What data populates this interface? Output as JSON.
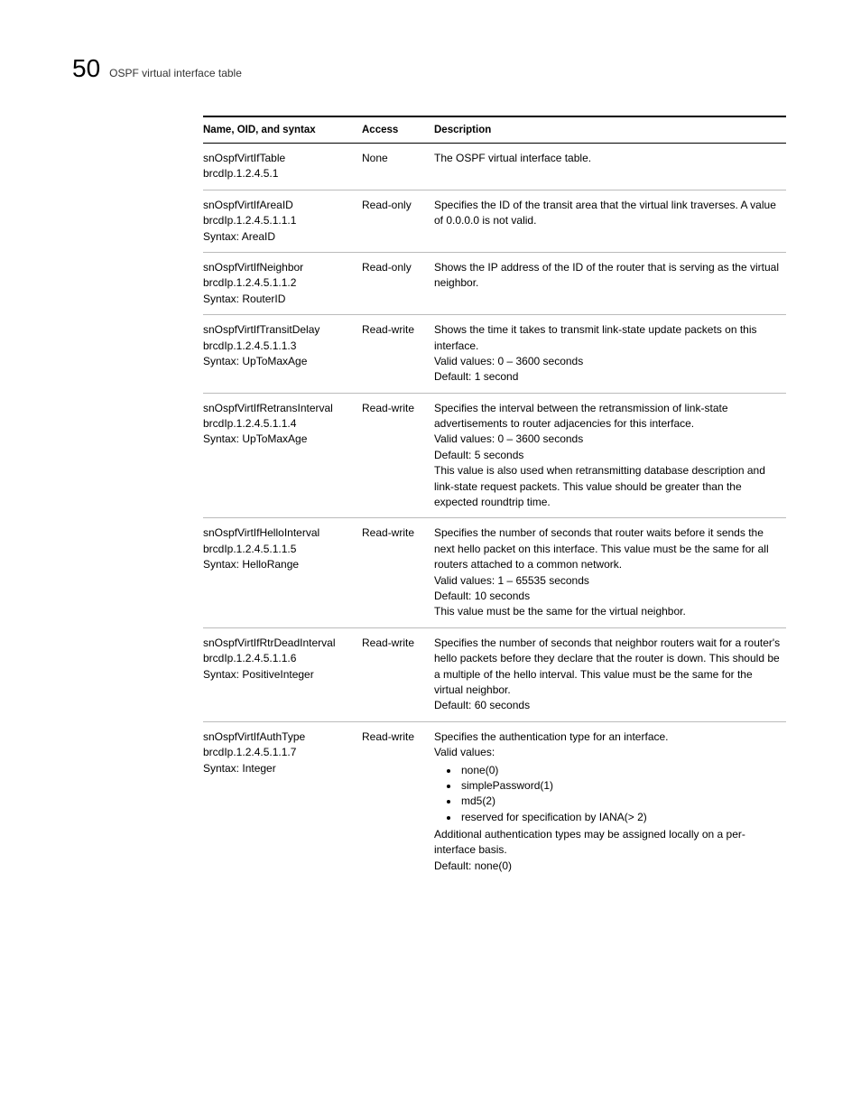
{
  "header": {
    "chapter_number": "50",
    "chapter_title": "OSPF virtual interface table"
  },
  "table": {
    "columns": {
      "name": "Name, OID, and syntax",
      "access": "Access",
      "description": "Description"
    },
    "rows": [
      {
        "name_lines": [
          "snOspfVirtIfTable",
          "brcdIp.1.2.4.5.1"
        ],
        "access": "None",
        "desc_pre": [
          "The OSPF virtual interface table."
        ],
        "bullets": [],
        "desc_post": []
      },
      {
        "name_lines": [
          "snOspfVirtIfAreaID",
          "brcdIp.1.2.4.5.1.1.1",
          "Syntax: AreaID"
        ],
        "access": "Read-only",
        "desc_pre": [
          "Specifies the ID of the transit area that the virtual link traverses. A value of 0.0.0.0 is not valid."
        ],
        "bullets": [],
        "desc_post": []
      },
      {
        "name_lines": [
          "snOspfVirtIfNeighbor",
          "brcdIp.1.2.4.5.1.1.2",
          "Syntax: RouterID"
        ],
        "access": "Read-only",
        "desc_pre": [
          "Shows the IP address of the ID of the router that is serving as the virtual neighbor."
        ],
        "bullets": [],
        "desc_post": []
      },
      {
        "name_lines": [
          "snOspfVirtIfTransitDelay",
          "brcdIp.1.2.4.5.1.1.3",
          "Syntax: UpToMaxAge"
        ],
        "access": "Read-write",
        "desc_pre": [
          "Shows the time it takes to transmit link-state update packets on this interface.",
          "Valid values: 0 – 3600 seconds",
          "Default: 1 second"
        ],
        "bullets": [],
        "desc_post": []
      },
      {
        "name_lines": [
          "snOspfVirtIfRetransInterval",
          "brcdIp.1.2.4.5.1.1.4",
          "Syntax: UpToMaxAge"
        ],
        "access": "Read-write",
        "desc_pre": [
          "Specifies the interval between the retransmission of link-state advertisements to router adjacencies for this interface.",
          "Valid values: 0 – 3600 seconds",
          "Default: 5 seconds",
          "This value is also used when retransmitting database description and link-state request packets. This value should be greater than the expected roundtrip time."
        ],
        "bullets": [],
        "desc_post": []
      },
      {
        "name_lines": [
          "snOspfVirtIfHelloInterval",
          "brcdIp.1.2.4.5.1.1.5",
          "Syntax: HelloRange"
        ],
        "access": "Read-write",
        "desc_pre": [
          "Specifies the number of seconds that router waits before it sends the next hello packet on this interface. This value must be the same for all routers attached to a common network.",
          "Valid values: 1 – 65535 seconds",
          "Default: 10 seconds",
          "This value must be the same for the virtual neighbor."
        ],
        "bullets": [],
        "desc_post": []
      },
      {
        "name_lines": [
          "snOspfVirtIfRtrDeadInterval",
          "brcdIp.1.2.4.5.1.1.6",
          "Syntax: PositiveInteger"
        ],
        "access": "Read-write",
        "desc_pre": [
          "Specifies the number of seconds that neighbor routers wait for a router's hello packets before they declare that the router is down. This should be a multiple of the hello interval. This value must be the same for the virtual neighbor.",
          "Default: 60 seconds"
        ],
        "bullets": [],
        "desc_post": []
      },
      {
        "name_lines": [
          "snOspfVirtIfAuthType",
          "brcdIp.1.2.4.5.1.1.7",
          "Syntax: Integer"
        ],
        "access": "Read-write",
        "desc_pre": [
          "Specifies the authentication type for an interface.",
          "Valid values:"
        ],
        "bullets": [
          "none(0)",
          "simplePassword(1)",
          "md5(2)",
          "reserved for specification by IANA(> 2)"
        ],
        "desc_post": [
          "Additional authentication types may be assigned locally on a per-interface basis.",
          "Default: none(0)"
        ]
      }
    ]
  }
}
